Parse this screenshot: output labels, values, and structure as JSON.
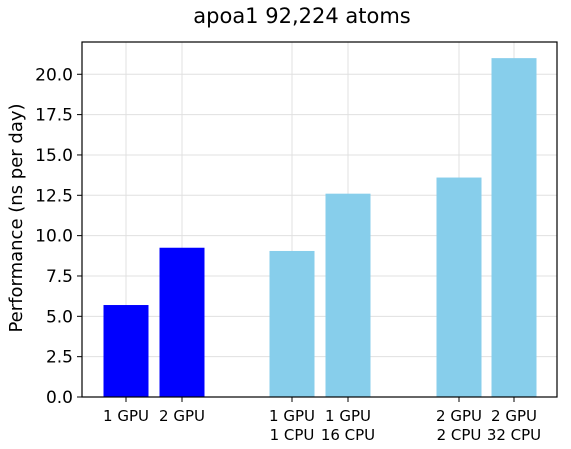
{
  "chart_data": {
    "type": "bar",
    "title": "apoa1 92,224 atoms",
    "xlabel": "",
    "ylabel": "Performance (ns per day)",
    "ylim": [
      0,
      22
    ],
    "yticks": [
      "0.0",
      "2.5",
      "5.0",
      "7.5",
      "10.0",
      "12.5",
      "15.0",
      "17.5",
      "20.0"
    ],
    "grid": true,
    "legend": "none",
    "categories": [
      [
        "1 GPU"
      ],
      [
        "2 GPU"
      ],
      [
        "1 GPU",
        "1 CPU"
      ],
      [
        "1 GPU",
        "16 CPU"
      ],
      [
        "2 GPU",
        "2 CPU"
      ],
      [
        "2 GPU",
        "32 CPU"
      ]
    ],
    "values": [
      5.7,
      9.25,
      9.05,
      12.6,
      13.6,
      21.0
    ],
    "colors": [
      "#0000ff",
      "#0000ff",
      "#87ceeb",
      "#87ceeb",
      "#87ceeb",
      "#87ceeb"
    ]
  }
}
